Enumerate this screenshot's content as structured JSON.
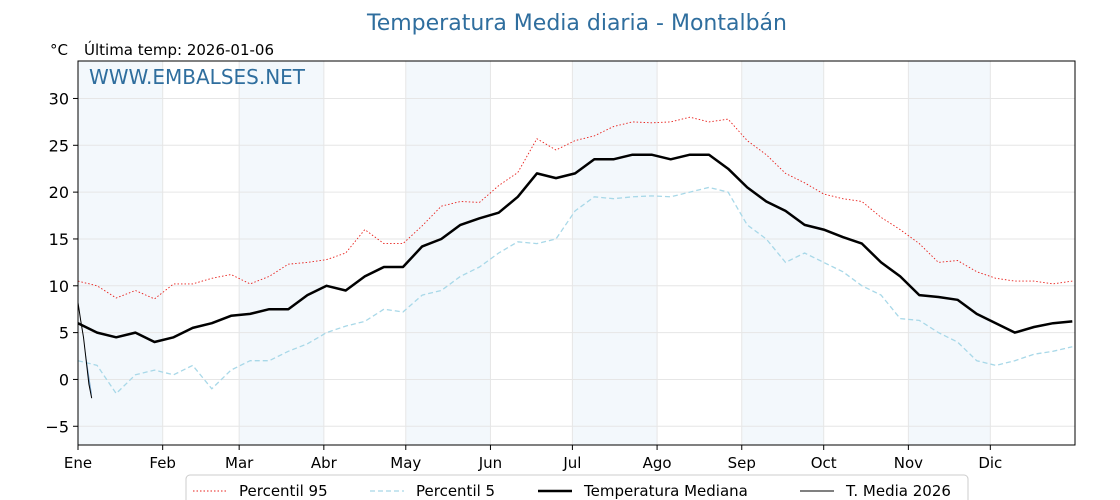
{
  "chart_data": {
    "type": "line",
    "title": "Temperatura Media diaria - Montalbán",
    "ylabel": "°C",
    "subtitle": "Última temp: 2026-01-06",
    "watermark": "WWW.EMBALSES.NET",
    "ylim": [
      -7,
      34
    ],
    "xlim": [
      1,
      366
    ],
    "yticks": [
      -5,
      0,
      5,
      10,
      15,
      20,
      25,
      30
    ],
    "grid": true,
    "shaded_months": true,
    "months": [
      {
        "label": "Ene",
        "day": 1
      },
      {
        "label": "Feb",
        "day": 32
      },
      {
        "label": "Mar",
        "day": 60
      },
      {
        "label": "Abr",
        "day": 91
      },
      {
        "label": "May",
        "day": 121
      },
      {
        "label": "Jun",
        "day": 152
      },
      {
        "label": "Jul",
        "day": 182
      },
      {
        "label": "Ago",
        "day": 213
      },
      {
        "label": "Sep",
        "day": 244
      },
      {
        "label": "Oct",
        "day": 274
      },
      {
        "label": "Nov",
        "day": 305
      },
      {
        "label": "Dic",
        "day": 335
      }
    ],
    "legend_position": "bottom-center",
    "series": [
      {
        "name": "Percentil 95",
        "style": "dotted",
        "color": "#e8201b",
        "x": [
          1,
          8,
          15,
          22,
          29,
          36,
          43,
          50,
          57,
          64,
          71,
          78,
          85,
          92,
          99,
          106,
          113,
          120,
          127,
          134,
          141,
          148,
          155,
          162,
          169,
          176,
          183,
          190,
          197,
          204,
          211,
          218,
          225,
          232,
          239,
          246,
          253,
          260,
          267,
          274,
          281,
          288,
          295,
          302,
          309,
          316,
          323,
          330,
          337,
          344,
          351,
          358,
          365
        ],
        "y": [
          10.5,
          10,
          8.7,
          9.5,
          8.6,
          10.2,
          10.2,
          10.8,
          11.2,
          10.2,
          11,
          12.3,
          12.5,
          12.8,
          13.5,
          16,
          14.5,
          14.5,
          16.4,
          18.5,
          19,
          18.9,
          20.7,
          22.1,
          25.7,
          24.5,
          25.5,
          26,
          27,
          27.5,
          27.4,
          27.5,
          28,
          27.5,
          27.8,
          25.5,
          24,
          22,
          21,
          19.8,
          19.3,
          19,
          17.3,
          16,
          14.5,
          12.5,
          12.7,
          11.5,
          10.8,
          10.5,
          10.5,
          10.2,
          10.5
        ]
      },
      {
        "name": "Percentil 5",
        "style": "dashed",
        "color": "#a8d8e8",
        "x": [
          1,
          8,
          15,
          22,
          29,
          36,
          43,
          50,
          57,
          64,
          71,
          78,
          85,
          92,
          99,
          106,
          113,
          120,
          127,
          134,
          141,
          148,
          155,
          162,
          169,
          176,
          183,
          190,
          197,
          204,
          211,
          218,
          225,
          232,
          239,
          246,
          253,
          260,
          267,
          274,
          281,
          288,
          295,
          302,
          309,
          316,
          323,
          330,
          337,
          344,
          351,
          358,
          365
        ],
        "y": [
          2,
          1.5,
          -1.5,
          0.5,
          1,
          0.5,
          1.5,
          -1,
          1,
          2,
          2,
          3,
          3.8,
          5,
          5.7,
          6.2,
          7.5,
          7.2,
          9,
          9.5,
          11,
          12,
          13.5,
          14.7,
          14.5,
          15,
          18,
          19.5,
          19.3,
          19.5,
          19.6,
          19.5,
          20,
          20.5,
          20,
          16.5,
          15,
          12.5,
          13.5,
          12.5,
          11.5,
          10,
          9,
          6.5,
          6.3,
          5,
          4,
          2,
          1.5,
          2,
          2.7,
          3,
          3.5
        ]
      },
      {
        "name": "Temperatura Mediana",
        "style": "solid-bold",
        "color": "#000000",
        "x": [
          1,
          8,
          15,
          22,
          29,
          36,
          43,
          50,
          57,
          64,
          71,
          78,
          85,
          92,
          99,
          106,
          113,
          120,
          127,
          134,
          141,
          148,
          155,
          162,
          169,
          176,
          183,
          190,
          197,
          204,
          211,
          218,
          225,
          232,
          239,
          246,
          253,
          260,
          267,
          274,
          281,
          288,
          295,
          302,
          309,
          316,
          323,
          330,
          337,
          344,
          351,
          358,
          365
        ],
        "y": [
          6,
          5,
          4.5,
          5,
          4,
          4.5,
          5.5,
          6,
          6.8,
          7,
          7.5,
          7.5,
          9,
          10,
          9.5,
          11,
          12,
          12,
          14.2,
          15,
          16.5,
          17.2,
          17.8,
          19.5,
          22,
          21.5,
          22,
          23.5,
          23.5,
          24,
          24,
          23.5,
          24,
          24,
          22.5,
          20.5,
          19,
          18,
          16.5,
          16,
          15.2,
          14.5,
          12.5,
          11,
          9,
          8.8,
          8.5,
          7,
          6,
          5,
          5.6,
          6,
          6.2
        ]
      },
      {
        "name": "T. Media 2026",
        "style": "solid-thin",
        "color": "#000000",
        "fill": "#5b92c2",
        "x": [
          1,
          2,
          3,
          4,
          5,
          6
        ],
        "y": [
          8.2,
          6.3,
          4.5,
          2,
          -0.5,
          -2
        ]
      }
    ]
  }
}
